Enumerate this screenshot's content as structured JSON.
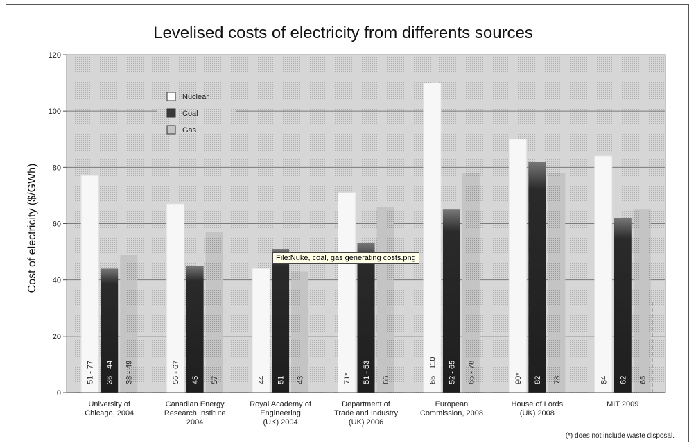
{
  "tooltip": "File:Nuke, coal, gas generating costs.png",
  "colors": {
    "plot_bg": "#cfcfcf",
    "nuclear": "#f7f7f7",
    "coal": "#2f2f2f",
    "gas": "#bdbdbd"
  },
  "chart_data": {
    "type": "bar",
    "title": "Levelised costs of electricity from differents sources",
    "xlabel": "",
    "ylabel": "Cost of electricity ($/GWh)",
    "ylim": [
      0,
      120
    ],
    "yticks": [
      0,
      20,
      40,
      60,
      80,
      100,
      120
    ],
    "grid": true,
    "legend_position": "top-left",
    "categories": [
      [
        "University of",
        "Chicago, 2004"
      ],
      [
        "Canadian Energy",
        "Research Institute",
        "2004"
      ],
      [
        "Royal Academy of",
        "Engineering",
        "(UK) 2004"
      ],
      [
        "Department of",
        "Trade and Industry",
        "(UK) 2006"
      ],
      [
        "European",
        "Commission, 2008"
      ],
      [
        "House of Lords",
        "(UK) 2008"
      ],
      [
        "MIT 2009"
      ]
    ],
    "series": [
      {
        "name": "Nuclear",
        "values": [
          77,
          67,
          44,
          71,
          110,
          90,
          84
        ],
        "labels": [
          "51 - 77",
          "56 - 67",
          "44",
          "71*",
          "65 - 110",
          "90*",
          "84"
        ]
      },
      {
        "name": "Coal",
        "values": [
          44,
          45,
          51,
          53,
          65,
          82,
          62
        ],
        "labels": [
          "36 - 44",
          "45",
          "51",
          "51 - 53",
          "52 - 65",
          "82",
          "62"
        ]
      },
      {
        "name": "Gas",
        "values": [
          49,
          57,
          43,
          66,
          78,
          78,
          65
        ],
        "labels": [
          "38 - 49",
          "57",
          "43",
          "66",
          "65 - 78",
          "78",
          "65"
        ]
      }
    ],
    "footnote": "(*) does not include waste disposal."
  }
}
